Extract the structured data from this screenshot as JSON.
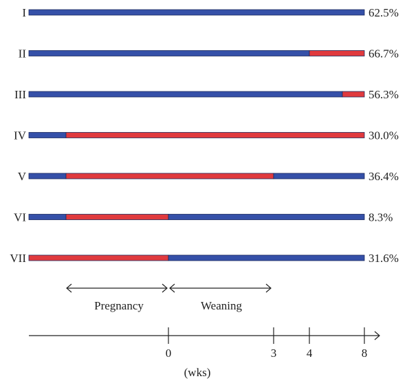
{
  "colors": {
    "blue": "#3550a8",
    "red": "#e03a3e",
    "outline": "#1c2a5c",
    "ink": "#222222"
  },
  "rows": [
    {
      "label": "I",
      "percent": "62.5%",
      "segments": [
        [
          "blue",
          -8,
          8
        ]
      ]
    },
    {
      "label": "II",
      "percent": "66.7%",
      "segments": [
        [
          "blue",
          -8,
          4
        ],
        [
          "red",
          4,
          8
        ]
      ]
    },
    {
      "label": "III",
      "percent": "56.3%",
      "segments": [
        [
          "blue",
          -8,
          7.4
        ],
        [
          "red",
          7.4,
          8
        ]
      ]
    },
    {
      "label": "IV",
      "percent": "30.0%",
      "segments": [
        [
          "blue",
          -8,
          -6
        ],
        [
          "red",
          -6,
          8
        ]
      ]
    },
    {
      "label": "V",
      "percent": "36.4%",
      "segments": [
        [
          "blue",
          -8,
          -6
        ],
        [
          "red",
          -6,
          3
        ],
        [
          "blue",
          3,
          8
        ]
      ]
    },
    {
      "label": "VI",
      "percent": "8.3%",
      "segments": [
        [
          "blue",
          -8,
          -6
        ],
        [
          "red",
          -6,
          0
        ],
        [
          "blue",
          0,
          8
        ]
      ]
    },
    {
      "label": "VII",
      "percent": "31.6%",
      "segments": [
        [
          "red",
          -8,
          0
        ],
        [
          "blue",
          0,
          8
        ]
      ]
    }
  ],
  "periods": {
    "pregnancy": "Pregnancy",
    "weaning": "Weaning"
  },
  "axis": {
    "unit": "(wks)",
    "ticks": [
      {
        "value": 0,
        "label": "0"
      },
      {
        "value": 3,
        "label": "3"
      },
      {
        "value": 4,
        "label": "4"
      },
      {
        "value": 8,
        "label": "8"
      }
    ]
  }
}
